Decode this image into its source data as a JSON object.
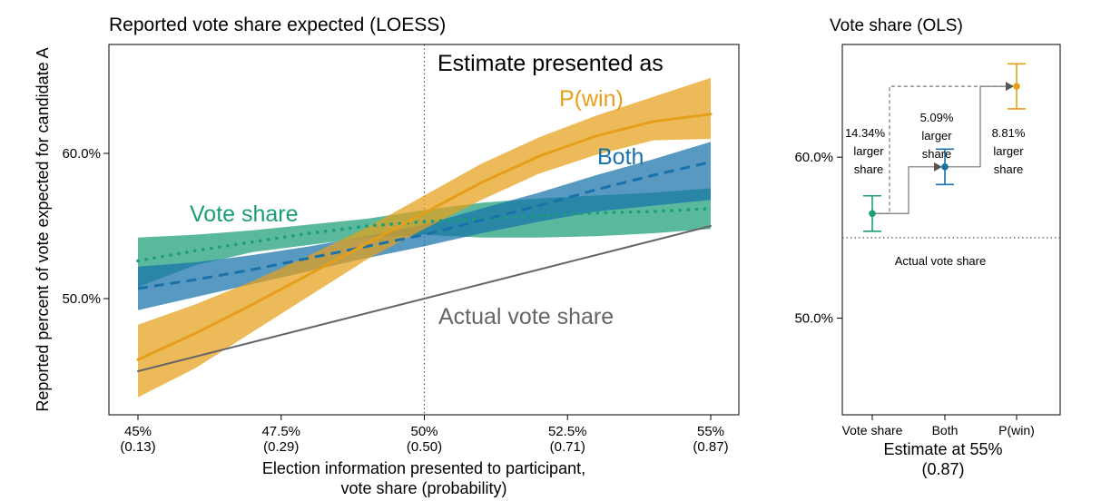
{
  "chart_data": [
    {
      "type": "line",
      "title": "Reported vote share expected (LOESS)",
      "ylabel": "Reported percent of vote expected for candidate A",
      "xlabel_lines": [
        "Election information presented to participant,",
        "vote share (probability)"
      ],
      "xlim": [
        45,
        55
      ],
      "ylim": [
        42,
        67.5
      ],
      "x_ticks": [
        {
          "value": 45,
          "label": "45%",
          "sub": "(0.13)"
        },
        {
          "value": 47.5,
          "label": "47.5%",
          "sub": "(0.29)"
        },
        {
          "value": 50,
          "label": "50%",
          "sub": "(0.50)"
        },
        {
          "value": 52.5,
          "label": "52.5%",
          "sub": "(0.71)"
        },
        {
          "value": 55,
          "label": "55%",
          "sub": "(0.87)"
        }
      ],
      "y_ticks": [
        {
          "value": 50,
          "label": "50.0%"
        },
        {
          "value": 60,
          "label": "60.0%"
        }
      ],
      "vline_x": 50,
      "legend_title": "Estimate presented as",
      "x": [
        45,
        46,
        47,
        48,
        49,
        50,
        51,
        52,
        53,
        54,
        55
      ],
      "series": [
        {
          "name": "Vote share",
          "color": "#1a9e77",
          "style": "dotted",
          "y": [
            52.6,
            53.3,
            53.9,
            54.5,
            55.0,
            55.3,
            55.5,
            55.7,
            55.9,
            56.0,
            56.2
          ],
          "lower": [
            50.8,
            52.3,
            53.2,
            53.7,
            54.2,
            54.4,
            54.2,
            54.2,
            54.3,
            54.5,
            54.8
          ],
          "upper": [
            54.2,
            54.4,
            54.7,
            55.1,
            55.5,
            56.1,
            56.6,
            56.9,
            57.1,
            57.3,
            57.6
          ]
        },
        {
          "name": "Both",
          "color": "#1872a9",
          "style": "dashed",
          "y": [
            50.7,
            51.3,
            52.0,
            52.8,
            53.6,
            54.4,
            55.4,
            56.4,
            57.5,
            58.5,
            59.4
          ],
          "lower": [
            49.2,
            50.1,
            51.0,
            51.9,
            52.8,
            53.6,
            54.5,
            55.3,
            56.0,
            56.4,
            56.8
          ],
          "upper": [
            52.2,
            52.5,
            53.0,
            53.6,
            54.3,
            55.1,
            56.2,
            57.3,
            58.5,
            59.6,
            60.8
          ]
        },
        {
          "name": "P(win)",
          "color": "#e69f1a",
          "style": "solid",
          "y": [
            45.8,
            47.6,
            49.6,
            51.7,
            53.8,
            55.9,
            58.0,
            59.8,
            61.2,
            62.2,
            62.7
          ],
          "lower": [
            43.2,
            45.2,
            47.7,
            50.2,
            52.7,
            54.8,
            56.8,
            58.6,
            59.9,
            60.9,
            61.0
          ],
          "upper": [
            48.2,
            49.6,
            51.2,
            53.0,
            54.9,
            57.1,
            59.3,
            61.1,
            62.6,
            63.9,
            65.2
          ]
        },
        {
          "name": "Actual vote share",
          "color": "#666666",
          "style": "solid",
          "y": [
            45,
            46,
            47,
            48,
            49,
            50,
            51,
            52,
            53,
            54,
            55
          ]
        }
      ],
      "labels": {
        "vote_share": "Vote share",
        "both": "Both",
        "pwin": "P(win)",
        "actual": "Actual vote share"
      }
    },
    {
      "type": "scatter",
      "title": "Vote share (OLS)",
      "xlabel_lines": [
        "Estimate at 55%",
        "(0.87)"
      ],
      "ylim": [
        44,
        67
      ],
      "categories": [
        "Vote share",
        "Both",
        "P(win)"
      ],
      "y_ticks": [
        {
          "value": 50,
          "label": "50.0%"
        },
        {
          "value": 60,
          "label": "60.0%"
        }
      ],
      "points": [
        {
          "name": "Vote share",
          "estimate": 56.5,
          "lower": 55.4,
          "upper": 57.6,
          "color": "#1a9e77"
        },
        {
          "name": "Both",
          "estimate": 59.4,
          "lower": 58.3,
          "upper": 60.5,
          "color": "#1872a9"
        },
        {
          "name": "P(win)",
          "estimate": 64.4,
          "lower": 63.0,
          "upper": 65.8,
          "color": "#e69f1a"
        }
      ],
      "hline": {
        "value": 55,
        "label": "Actual vote share"
      },
      "annotations": [
        [
          "14.34%",
          "larger",
          "share"
        ],
        [
          "5.09%",
          "larger",
          "share"
        ],
        [
          "8.81%",
          "larger",
          "share"
        ]
      ]
    }
  ]
}
